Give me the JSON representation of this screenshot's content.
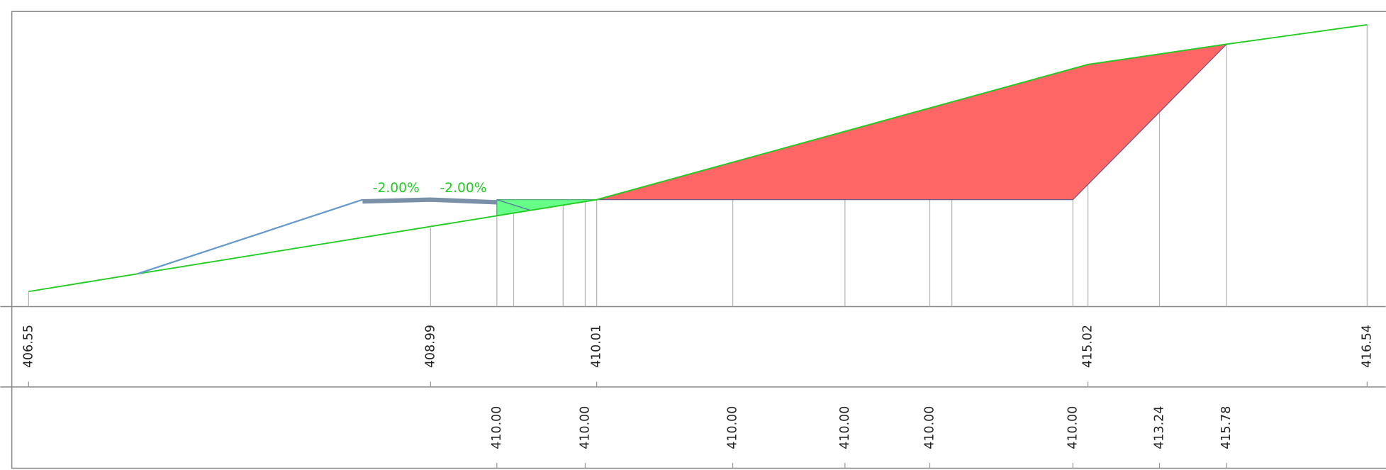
{
  "slopes": [
    "-2.00%",
    "-2.00%"
  ],
  "ground_labels": [
    "406.55",
    "408.99",
    "410.01",
    "415.02",
    "416.54"
  ],
  "design_labels": [
    "410.00",
    "410.00",
    "410.00",
    "410.00",
    "410.00",
    "410.00",
    "413.24",
    "415.78"
  ]
}
